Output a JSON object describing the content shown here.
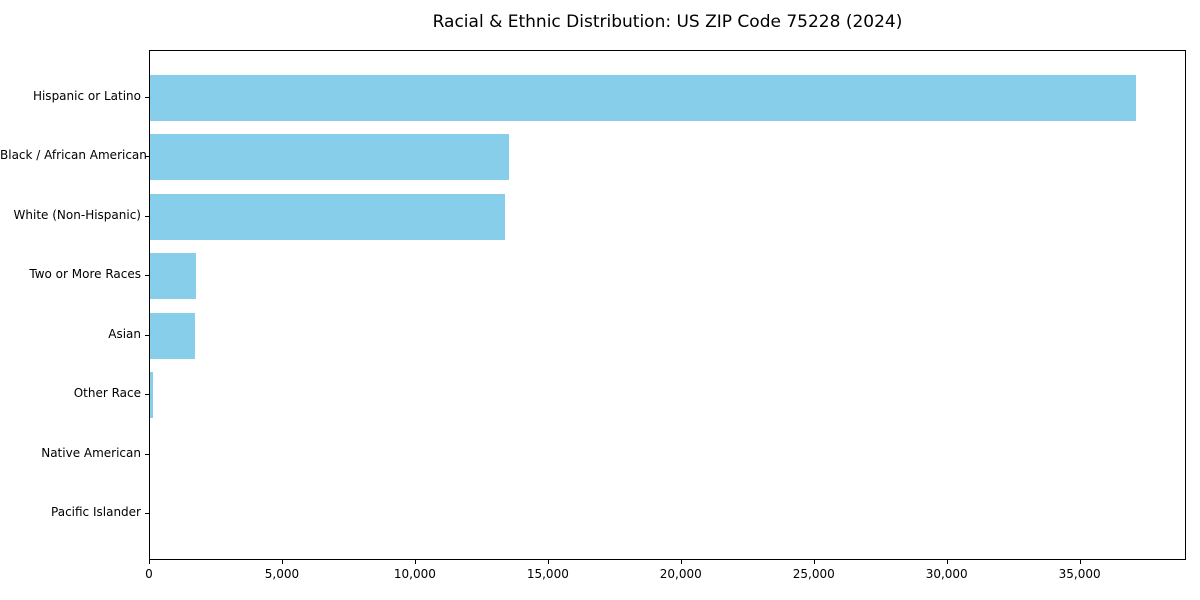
{
  "chart_data": {
    "type": "bar",
    "orientation": "horizontal",
    "title": "Racial & Ethnic Distribution: US ZIP Code 75228 (2024)",
    "categories": [
      "Hispanic or Latino",
      "Black / African American",
      "White (Non-Hispanic)",
      "Two or More Races",
      "Asian",
      "Other Race",
      "Native American",
      "Pacific Islander"
    ],
    "values": [
      37170,
      13530,
      13370,
      1750,
      1700,
      130,
      0,
      0
    ],
    "xlabel": "",
    "ylabel": "",
    "xlim": [
      0,
      39000
    ],
    "xticks": [
      0,
      5000,
      10000,
      15000,
      20000,
      25000,
      30000,
      35000
    ],
    "xtick_labels": [
      "0",
      "5,000",
      "10,000",
      "15,000",
      "20,000",
      "25,000",
      "30,000",
      "35,000"
    ],
    "bar_color": "#87CEEB",
    "grid": false,
    "legend": null,
    "background_color": "#ffffff",
    "spine_color": "#000000"
  }
}
